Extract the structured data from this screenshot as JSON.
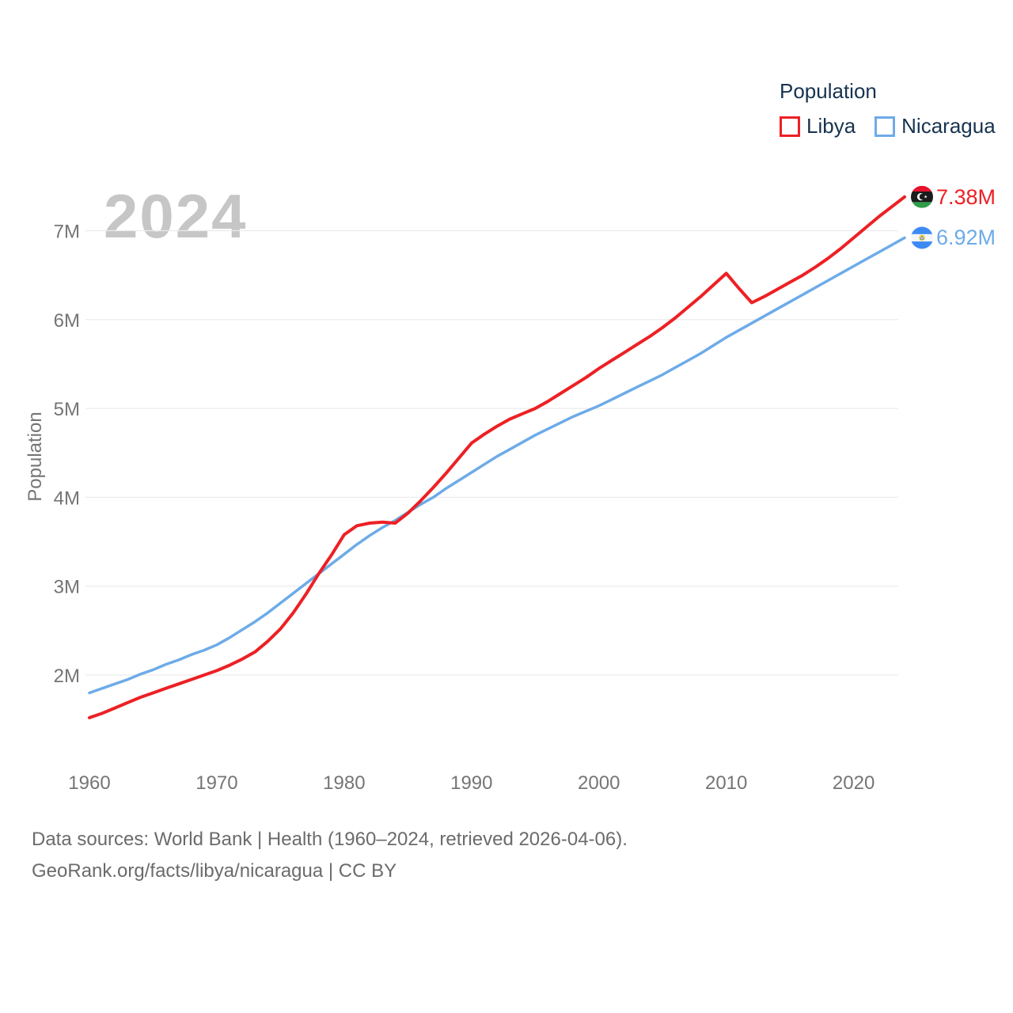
{
  "legend": {
    "title": "Population"
  },
  "chart_data": {
    "type": "line",
    "title": "2024",
    "ylabel": "Population",
    "x": {
      "start": 1960,
      "end": 2024,
      "step": 1
    },
    "x_axis": {
      "ticks": [
        1960,
        1970,
        1980,
        1990,
        2000,
        2010,
        2020
      ]
    },
    "y_axis": {
      "unit": "millions",
      "ticks": [
        {
          "value": 2,
          "label": "2M"
        },
        {
          "value": 3,
          "label": "3M"
        },
        {
          "value": 4,
          "label": "4M"
        },
        {
          "value": 5,
          "label": "5M"
        },
        {
          "value": 6,
          "label": "6M"
        },
        {
          "value": 7,
          "label": "7M"
        }
      ]
    },
    "grid": "horizontal",
    "legend_position": "top-right",
    "series": [
      {
        "name": "Libya",
        "color": "#ed2024",
        "end_label": "7.38M",
        "end_value_m": 7.38,
        "values": [
          1.52,
          1.57,
          1.63,
          1.69,
          1.75,
          1.8,
          1.85,
          1.9,
          1.95,
          2.0,
          2.05,
          2.11,
          2.18,
          2.26,
          2.38,
          2.52,
          2.7,
          2.91,
          3.14,
          3.35,
          3.58,
          3.68,
          3.71,
          3.72,
          3.71,
          3.82,
          3.96,
          4.11,
          4.27,
          4.44,
          4.61,
          4.71,
          4.8,
          4.88,
          4.94,
          5.0,
          5.08,
          5.17,
          5.26,
          5.35,
          5.45,
          5.54,
          5.63,
          5.72,
          5.81,
          5.91,
          6.02,
          6.14,
          6.26,
          6.39,
          6.52,
          6.35,
          6.19,
          6.26,
          6.34,
          6.42,
          6.5,
          6.59,
          6.69,
          6.8,
          6.92,
          7.04,
          7.16,
          7.27,
          7.38
        ]
      },
      {
        "name": "Nicaragua",
        "color": "#6dabe8",
        "end_label": "6.92M",
        "end_value_m": 6.92,
        "values": [
          1.8,
          1.85,
          1.9,
          1.95,
          2.01,
          2.06,
          2.12,
          2.17,
          2.23,
          2.28,
          2.34,
          2.42,
          2.51,
          2.6,
          2.7,
          2.81,
          2.92,
          3.03,
          3.14,
          3.25,
          3.36,
          3.47,
          3.57,
          3.66,
          3.74,
          3.83,
          3.92,
          4.0,
          4.1,
          4.19,
          4.28,
          4.37,
          4.46,
          4.54,
          4.62,
          4.7,
          4.77,
          4.84,
          4.91,
          4.97,
          5.03,
          5.1,
          5.17,
          5.24,
          5.31,
          5.38,
          5.46,
          5.54,
          5.62,
          5.71,
          5.8,
          5.88,
          5.96,
          6.04,
          6.12,
          6.2,
          6.28,
          6.36,
          6.44,
          6.52,
          6.6,
          6.68,
          6.76,
          6.84,
          6.92
        ]
      }
    ]
  },
  "footer": {
    "line1": "Data sources: World Bank | Health (1960–2024, retrieved 2026-04-06).",
    "line2": "GeoRank.org/facts/libya/nicaragua | CC BY"
  }
}
